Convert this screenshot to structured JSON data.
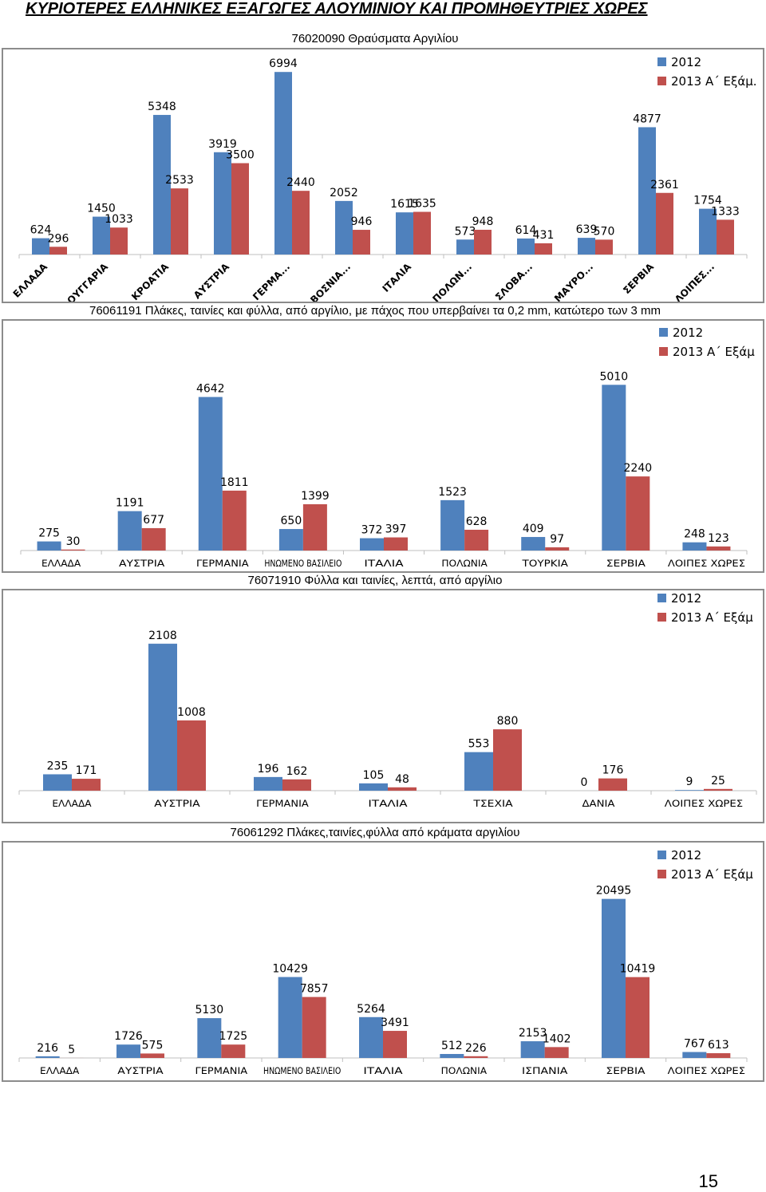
{
  "page": {
    "title": "ΚΥΡΙΟΤΕΡΕΣ ΕΛΛΗΝΙΚΕΣ ΕΞΑΓΩΓΕΣ ΑΛΟΥΜΙΝΙΟΥ ΚΑΙ ΠΡΟΜΗΘΕΥΤΡΙΕΣ ΧΩΡΕΣ",
    "page_number": "15"
  },
  "colors": {
    "series_2012": "#4f81bd",
    "series_2013": "#c0504d",
    "axis": "#bfbfbf",
    "frame": "#8c8c8c"
  },
  "chart_data": [
    {
      "type": "bar",
      "title": "76020090  Θραύσματα Αργιλίου",
      "categories": [
        "ΕΛΛΑΔΑ",
        "ΟΥΓΓΑΡΙΑ",
        "ΚΡΟΑΤΙΑ",
        "ΑΥΣΤΡΙΑ",
        "ΓΕΡΜΑ...",
        "ΒΟΣΝΙΑ...",
        "ΙΤΑΛΙΑ",
        "ΠΟΛΩΝ...",
        "ΣΛΟΒΑ...",
        "ΜΑΥΡΟ...",
        "ΣΕΡΒΙΑ",
        "ΛΟΙΠΕΣ..."
      ],
      "series": [
        {
          "name": "2012",
          "values": [
            624,
            1450,
            5348,
            3919,
            6994,
            2052,
            1615,
            573,
            614,
            639,
            4877,
            1754
          ]
        },
        {
          "name": "2013 Α΄ Εξάμ.",
          "values": [
            296,
            1033,
            2533,
            3500,
            2440,
            946,
            1635,
            948,
            431,
            570,
            2361,
            1333
          ]
        }
      ],
      "ylim": [
        0,
        7000
      ],
      "rotated_labels": true,
      "legend": "top-right"
    },
    {
      "type": "bar",
      "title": "76061191 Πλάκες, ταινίες και φύλλα, από αργίλιο, με πάχος που υπερβαίνει τα 0,2 mm, κατώτερο των 3 mm",
      "categories": [
        "ΕΛΛΑΔΑ",
        "ΑΥΣΤΡΙΑ",
        "ΓΕΡΜΑΝΙΑ",
        "ΗΝΩΜΕΝΟ ΒΑΣΙΛΕΙΟ",
        "ΙΤΑΛΙΑ",
        "ΠΟΛΩΝΙΑ",
        "ΤΟΥΡΚΙΑ",
        "ΣΕΡΒΙΑ",
        "ΛΟΙΠΕΣ ΧΩΡΕΣ"
      ],
      "series": [
        {
          "name": "2012",
          "values": [
            275,
            1191,
            4642,
            650,
            372,
            1523,
            409,
            5010,
            248
          ]
        },
        {
          "name": "2013 Α΄ Εξάμ",
          "values": [
            30,
            677,
            1811,
            1399,
            397,
            628,
            97,
            2240,
            123
          ]
        }
      ],
      "ylim": [
        0,
        5500
      ],
      "rotated_labels": false,
      "legend": "top-right"
    },
    {
      "type": "bar",
      "title": "76071910 Φύλλα και ταινίες, λεπτά, από αργίλιο",
      "categories": [
        "ΕΛΛΑΔΑ",
        "ΑΥΣΤΡΙΑ",
        "ΓΕΡΜΑΝΙΑ",
        "ΙΤΑΛΙΑ",
        "ΤΣΕΧΙΑ",
        "ΔΑΝΙΑ",
        "ΛΟΙΠΕΣ ΧΩΡΕΣ"
      ],
      "series": [
        {
          "name": "2012",
          "values": [
            235,
            2108,
            196,
            105,
            553,
            0,
            9
          ]
        },
        {
          "name": "2013 Α΄ Εξάμ",
          "values": [
            171,
            1008,
            162,
            48,
            880,
            176,
            25
          ]
        }
      ],
      "ylim": [
        0,
        2300
      ],
      "rotated_labels": false,
      "legend": "top-right"
    },
    {
      "type": "bar",
      "title": "76061292 Πλάκες,ταινίες,φύλλα από κράματα αργιλίου",
      "categories": [
        "ΕΛΛΑΔΑ",
        "ΑΥΣΤΡΙΑ",
        "ΓΕΡΜΑΝΙΑ",
        "ΗΝΩΜΕΝΟ ΒΑΣΙΛΕΙΟ",
        "ΙΤΑΛΙΑ",
        "ΠΟΛΩΝΙΑ",
        "ΙΣΠΑΝΙΑ",
        "ΣΕΡΒΙΑ",
        "ΛΟΙΠΕΣ ΧΩΡΕΣ"
      ],
      "series": [
        {
          "name": "2012",
          "values": [
            216,
            1726,
            5130,
            10429,
            5264,
            512,
            2153,
            20495,
            767
          ]
        },
        {
          "name": "2013 Α΄ Εξάμ",
          "values": [
            5,
            575,
            1725,
            7857,
            3491,
            226,
            1402,
            10419,
            613
          ]
        }
      ],
      "ylim": [
        0,
        22000
      ],
      "rotated_labels": false,
      "legend": "top-right"
    }
  ]
}
